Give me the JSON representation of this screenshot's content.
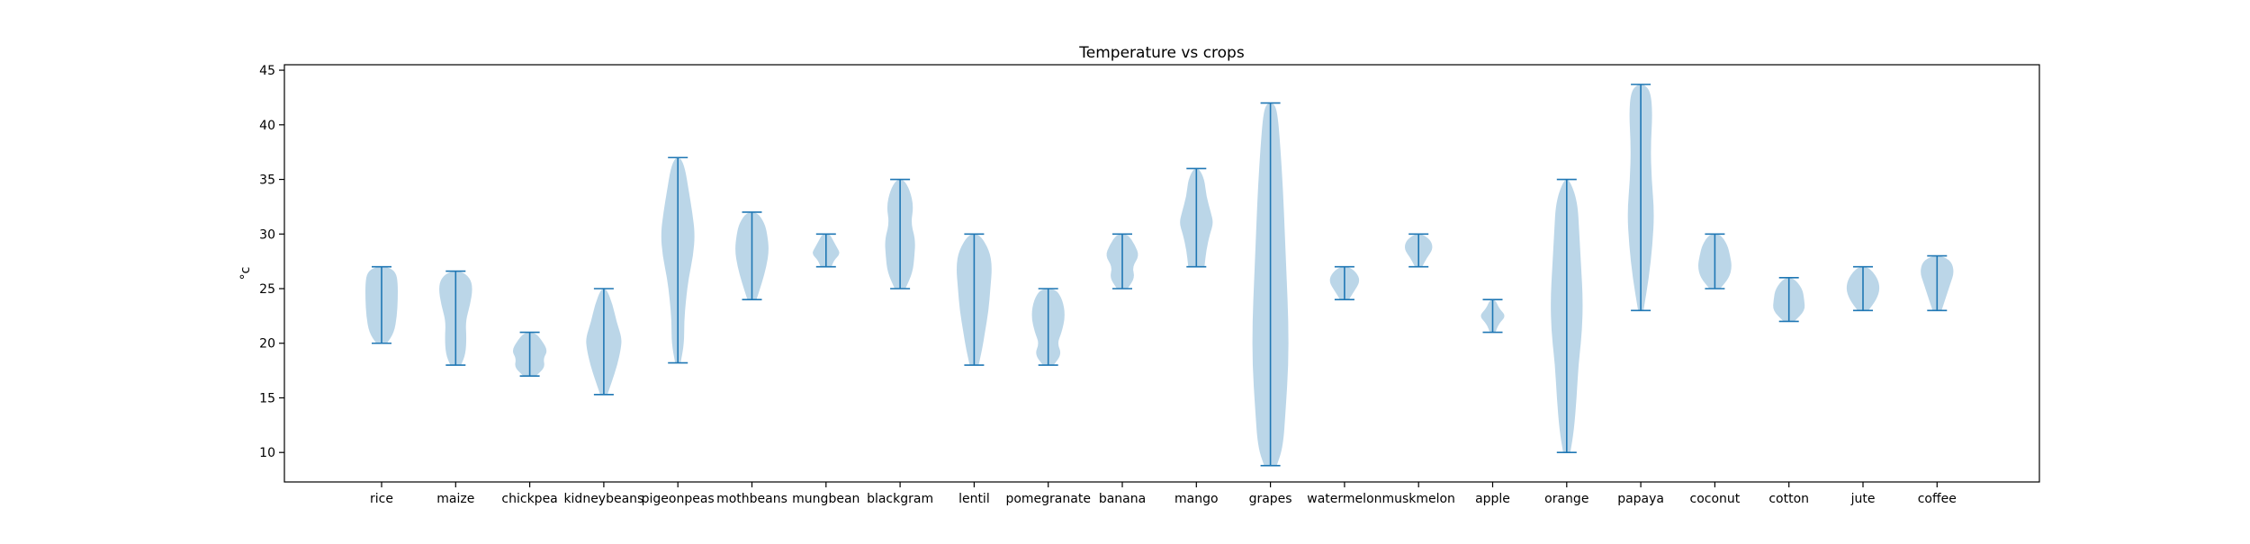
{
  "chart_data": {
    "type": "violin",
    "title": "Temperature vs crops",
    "xlabel": "",
    "ylabel": "°c",
    "ylim": [
      7.3,
      45.5
    ],
    "yticks": [
      10,
      15,
      20,
      25,
      30,
      35,
      40,
      45
    ],
    "grid": false,
    "colors": {
      "body": "#1f77b4",
      "body_opacity": 0.3,
      "line": "#1f77b4",
      "axis": "#000000"
    },
    "categories": [
      "rice",
      "maize",
      "chickpea",
      "kidneybeans",
      "pigeonpeas",
      "mothbeans",
      "mungbean",
      "blackgram",
      "lentil",
      "pomegranate",
      "banana",
      "mango",
      "grapes",
      "watermelon",
      "muskmelon",
      "apple",
      "orange",
      "papaya",
      "coconut",
      "cotton",
      "jute",
      "coffee"
    ],
    "series": [
      {
        "name": "rice",
        "min": 20.0,
        "max": 27.0,
        "profile": [
          [
            20.0,
            0.3
          ],
          [
            21.0,
            0.7
          ],
          [
            22.5,
            0.85
          ],
          [
            24.0,
            0.9
          ],
          [
            25.5,
            0.9
          ],
          [
            26.5,
            0.8
          ],
          [
            27.0,
            0.35
          ]
        ]
      },
      {
        "name": "maize",
        "min": 18.0,
        "max": 26.6,
        "profile": [
          [
            18.0,
            0.3
          ],
          [
            19.0,
            0.55
          ],
          [
            20.5,
            0.6
          ],
          [
            22.0,
            0.55
          ],
          [
            23.5,
            0.8
          ],
          [
            25.0,
            0.95
          ],
          [
            26.0,
            0.8
          ],
          [
            26.6,
            0.3
          ]
        ]
      },
      {
        "name": "chickpea",
        "min": 17.0,
        "max": 21.0,
        "profile": [
          [
            17.0,
            0.35
          ],
          [
            17.8,
            0.85
          ],
          [
            18.6,
            0.75
          ],
          [
            19.3,
            1.0
          ],
          [
            20.2,
            0.7
          ],
          [
            21.0,
            0.3
          ]
        ]
      },
      {
        "name": "kidneybeans",
        "min": 15.3,
        "max": 25.0,
        "profile": [
          [
            15.3,
            0.2
          ],
          [
            16.5,
            0.45
          ],
          [
            18.0,
            0.75
          ],
          [
            19.5,
            0.95
          ],
          [
            20.5,
            1.0
          ],
          [
            22.0,
            0.7
          ],
          [
            23.5,
            0.5
          ],
          [
            25.0,
            0.15
          ]
        ]
      },
      {
        "name": "pigeonpeas",
        "min": 18.2,
        "max": 37.0,
        "profile": [
          [
            18.2,
            0.15
          ],
          [
            20.0,
            0.35
          ],
          [
            22.0,
            0.35
          ],
          [
            24.0,
            0.45
          ],
          [
            26.0,
            0.6
          ],
          [
            28.0,
            0.85
          ],
          [
            30.0,
            0.95
          ],
          [
            32.0,
            0.8
          ],
          [
            34.0,
            0.6
          ],
          [
            36.0,
            0.4
          ],
          [
            37.0,
            0.15
          ]
        ]
      },
      {
        "name": "mothbeans",
        "min": 24.0,
        "max": 32.0,
        "profile": [
          [
            24.0,
            0.25
          ],
          [
            25.5,
            0.55
          ],
          [
            27.0,
            0.8
          ],
          [
            28.5,
            0.95
          ],
          [
            30.0,
            0.85
          ],
          [
            31.0,
            0.7
          ],
          [
            32.0,
            0.3
          ]
        ]
      },
      {
        "name": "mungbean",
        "min": 27.0,
        "max": 30.0,
        "profile": [
          [
            27.0,
            0.3
          ],
          [
            27.6,
            0.45
          ],
          [
            28.2,
            0.8
          ],
          [
            28.8,
            0.6
          ],
          [
            29.4,
            0.4
          ],
          [
            30.0,
            0.2
          ]
        ]
      },
      {
        "name": "blackgram",
        "min": 25.0,
        "max": 35.0,
        "profile": [
          [
            25.0,
            0.3
          ],
          [
            26.5,
            0.7
          ],
          [
            28.0,
            0.8
          ],
          [
            29.5,
            0.85
          ],
          [
            31.0,
            0.6
          ],
          [
            32.5,
            0.75
          ],
          [
            34.0,
            0.55
          ],
          [
            35.0,
            0.2
          ]
        ]
      },
      {
        "name": "lentil",
        "min": 18.0,
        "max": 30.0,
        "profile": [
          [
            18.0,
            0.25
          ],
          [
            19.5,
            0.45
          ],
          [
            21.0,
            0.6
          ],
          [
            23.0,
            0.8
          ],
          [
            25.0,
            0.9
          ],
          [
            27.0,
            1.0
          ],
          [
            28.5,
            0.85
          ],
          [
            30.0,
            0.3
          ]
        ]
      },
      {
        "name": "pomegranate",
        "min": 18.0,
        "max": 25.0,
        "profile": [
          [
            18.0,
            0.3
          ],
          [
            19.0,
            0.75
          ],
          [
            20.0,
            0.5
          ],
          [
            21.0,
            0.75
          ],
          [
            22.5,
            0.95
          ],
          [
            24.0,
            0.8
          ],
          [
            25.0,
            0.4
          ]
        ]
      },
      {
        "name": "banana",
        "min": 25.0,
        "max": 30.0,
        "profile": [
          [
            25.0,
            0.3
          ],
          [
            26.0,
            0.7
          ],
          [
            27.0,
            0.55
          ],
          [
            28.0,
            0.95
          ],
          [
            29.0,
            0.7
          ],
          [
            30.0,
            0.3
          ]
        ]
      },
      {
        "name": "mango",
        "min": 27.0,
        "max": 36.0,
        "profile": [
          [
            27.0,
            0.45
          ],
          [
            28.5,
            0.55
          ],
          [
            30.0,
            0.75
          ],
          [
            31.0,
            0.95
          ],
          [
            32.0,
            0.8
          ],
          [
            33.5,
            0.55
          ],
          [
            35.0,
            0.45
          ],
          [
            36.0,
            0.15
          ]
        ]
      },
      {
        "name": "grapes",
        "min": 8.8,
        "max": 42.0,
        "profile": [
          [
            8.8,
            0.35
          ],
          [
            10.5,
            0.7
          ],
          [
            14.0,
            0.85
          ],
          [
            18.0,
            1.0
          ],
          [
            22.0,
            1.0
          ],
          [
            26.0,
            0.9
          ],
          [
            30.0,
            0.8
          ],
          [
            34.0,
            0.7
          ],
          [
            38.0,
            0.55
          ],
          [
            41.0,
            0.4
          ],
          [
            42.0,
            0.2
          ]
        ]
      },
      {
        "name": "watermelon",
        "min": 24.0,
        "max": 27.0,
        "profile": [
          [
            24.0,
            0.25
          ],
          [
            24.8,
            0.55
          ],
          [
            25.6,
            0.85
          ],
          [
            26.3,
            0.75
          ],
          [
            27.0,
            0.3
          ]
        ]
      },
      {
        "name": "muskmelon",
        "min": 27.0,
        "max": 30.0,
        "profile": [
          [
            27.0,
            0.2
          ],
          [
            27.8,
            0.45
          ],
          [
            28.6,
            0.8
          ],
          [
            29.4,
            0.7
          ],
          [
            30.0,
            0.2
          ]
        ]
      },
      {
        "name": "apple",
        "min": 21.0,
        "max": 24.0,
        "profile": [
          [
            21.0,
            0.15
          ],
          [
            21.8,
            0.35
          ],
          [
            22.5,
            0.75
          ],
          [
            23.2,
            0.35
          ],
          [
            24.0,
            0.15
          ]
        ]
      },
      {
        "name": "orange",
        "min": 10.0,
        "max": 35.0,
        "profile": [
          [
            10.0,
            0.2
          ],
          [
            12.0,
            0.4
          ],
          [
            15.0,
            0.55
          ],
          [
            18.0,
            0.65
          ],
          [
            21.0,
            0.85
          ],
          [
            24.0,
            0.9
          ],
          [
            27.0,
            0.8
          ],
          [
            30.0,
            0.7
          ],
          [
            33.0,
            0.6
          ],
          [
            35.0,
            0.15
          ]
        ]
      },
      {
        "name": "papaya",
        "min": 23.0,
        "max": 43.7,
        "profile": [
          [
            23.0,
            0.15
          ],
          [
            26.0,
            0.45
          ],
          [
            29.0,
            0.65
          ],
          [
            32.0,
            0.75
          ],
          [
            35.0,
            0.6
          ],
          [
            38.0,
            0.55
          ],
          [
            41.0,
            0.65
          ],
          [
            43.0,
            0.55
          ],
          [
            43.7,
            0.2
          ]
        ]
      },
      {
        "name": "coconut",
        "min": 25.0,
        "max": 30.0,
        "profile": [
          [
            25.0,
            0.3
          ],
          [
            26.0,
            0.8
          ],
          [
            27.0,
            0.95
          ],
          [
            28.0,
            0.85
          ],
          [
            29.0,
            0.7
          ],
          [
            30.0,
            0.3
          ]
        ]
      },
      {
        "name": "cotton",
        "min": 22.0,
        "max": 26.0,
        "profile": [
          [
            22.0,
            0.3
          ],
          [
            23.0,
            0.9
          ],
          [
            24.0,
            0.85
          ],
          [
            25.0,
            0.75
          ],
          [
            26.0,
            0.25
          ]
        ]
      },
      {
        "name": "jute",
        "min": 23.0,
        "max": 27.0,
        "profile": [
          [
            23.0,
            0.3
          ],
          [
            24.0,
            0.75
          ],
          [
            25.0,
            0.95
          ],
          [
            26.0,
            0.8
          ],
          [
            27.0,
            0.3
          ]
        ]
      },
      {
        "name": "coffee",
        "min": 23.0,
        "max": 28.0,
        "profile": [
          [
            23.0,
            0.25
          ],
          [
            24.0,
            0.45
          ],
          [
            25.5,
            0.75
          ],
          [
            26.5,
            0.95
          ],
          [
            27.5,
            0.8
          ],
          [
            28.0,
            0.25
          ]
        ]
      }
    ]
  }
}
